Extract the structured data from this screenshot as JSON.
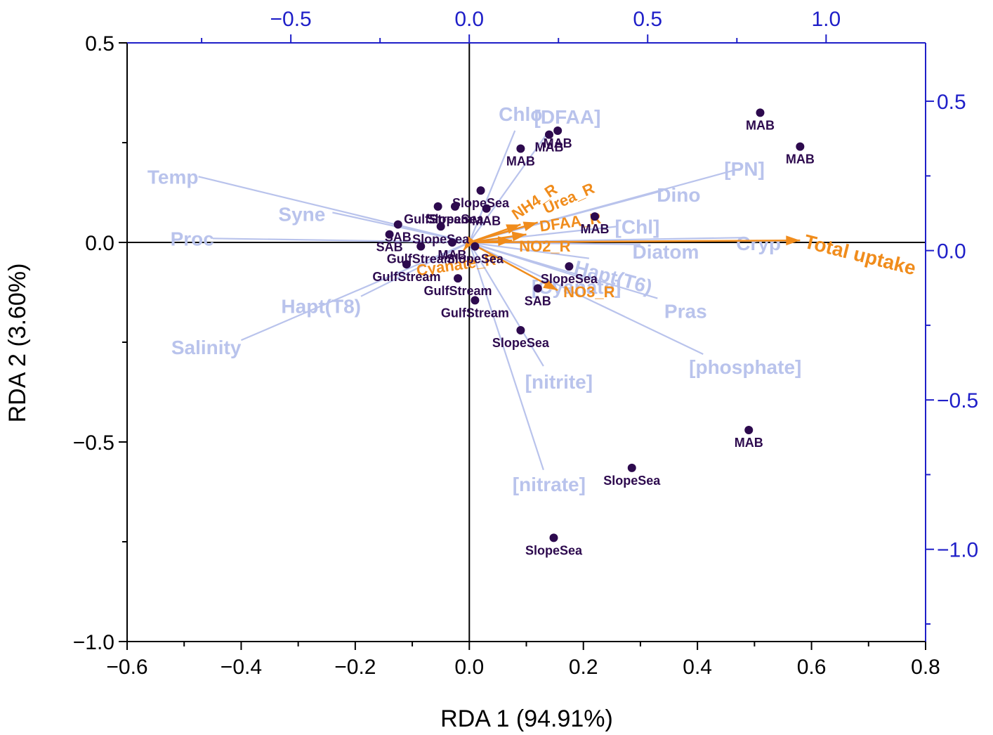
{
  "chart_data": {
    "type": "scatter",
    "subtype": "RDA biplot",
    "title": "",
    "xlabel": "RDA 1 (94.91%)",
    "ylabel": "RDA 2 (3.60%)",
    "xlim": [
      -0.6,
      0.8
    ],
    "ylim": [
      -1.0,
      0.5
    ],
    "x_ticks": [
      -0.6,
      -0.4,
      -0.2,
      0.0,
      0.2,
      0.4,
      0.6,
      0.8
    ],
    "x_tick_labels": [
      "−0.6",
      "−0.4",
      "−0.2",
      "0.0",
      "0.2",
      "0.4",
      "0.6",
      "0.8"
    ],
    "y_ticks": [
      0.5,
      0.0,
      -0.5,
      -1.0
    ],
    "y_tick_labels": [
      "0.5",
      "0.0",
      "−0.5",
      "−1.0"
    ],
    "top_axis": {
      "lim": [
        -0.9588,
        1.2788
      ],
      "ticks": [
        -0.5,
        0.0,
        0.5,
        1.0
      ],
      "tick_labels": [
        "−0.5",
        "0.0",
        "0.5",
        "1.0"
      ]
    },
    "right_axis": {
      "lim": [
        -1.3088,
        0.6954
      ],
      "ticks": [
        0.5,
        0.0,
        -0.5,
        -1.0
      ],
      "tick_labels": [
        "0.5",
        "0.0",
        "−0.5",
        "−1.0"
      ]
    },
    "colors": {
      "points": "#2d0a4e",
      "environment": "#b9c3ec",
      "response": "#f08c1c",
      "secondary_axis": "#1f1fc8",
      "axis": "#000000"
    },
    "environmental_vectors": [
      {
        "name": "Temp",
        "x": -0.475,
        "y": 0.165
      },
      {
        "name": "Syne",
        "x": -0.24,
        "y": 0.075
      },
      {
        "name": "Proc",
        "x": -0.45,
        "y": 0.01
      },
      {
        "name": "Salinity",
        "x": -0.4,
        "y": -0.245
      },
      {
        "name": "Hapt(T8)",
        "x": -0.19,
        "y": -0.135
      },
      {
        "name": "Chlo",
        "x": 0.08,
        "y": 0.28
      },
      {
        "name": "[DFAA]",
        "x": 0.14,
        "y": 0.28
      },
      {
        "name": "[PN]",
        "x": 0.475,
        "y": 0.185
      },
      {
        "name": "Dino",
        "x": 0.34,
        "y": 0.13
      },
      {
        "name": "[Chl]",
        "x": 0.26,
        "y": 0.04
      },
      {
        "name": "Cryp",
        "x": 0.48,
        "y": 0.012
      },
      {
        "name": "Diatom",
        "x": 0.3,
        "y": -0.005
      },
      {
        "name": "Hapt(T6)",
        "x": 0.21,
        "y": -0.04
      },
      {
        "name": "Pras",
        "x": 0.33,
        "y": -0.14
      },
      {
        "name": "[phosphate]",
        "x": 0.41,
        "y": -0.28
      },
      {
        "name": "[Cyanate]",
        "x": 0.2,
        "y": -0.09
      },
      {
        "name": "[nitrite]",
        "x": 0.13,
        "y": -0.31
      },
      {
        "name": "[nitrate]",
        "x": 0.13,
        "y": -0.57
      }
    ],
    "response_vectors": [
      {
        "name": "Total uptake",
        "x": 0.58,
        "y": 0.005
      },
      {
        "name": "Urea_R",
        "x": 0.12,
        "y": 0.05
      },
      {
        "name": "NH4_R",
        "x": 0.09,
        "y": 0.045
      },
      {
        "name": "DFAA_R",
        "x": 0.1,
        "y": 0.02
      },
      {
        "name": "NO2_R",
        "x": 0.075,
        "y": 0.005
      },
      {
        "name": "NO3_R",
        "x": 0.155,
        "y": -0.12
      },
      {
        "name": "Cyanate_R",
        "x": -0.01,
        "y": -0.02
      }
    ],
    "sites": [
      {
        "label": "MAB",
        "x": 0.51,
        "y": 0.325
      },
      {
        "label": "MAB",
        "x": 0.58,
        "y": 0.24
      },
      {
        "label": "MAB",
        "x": 0.155,
        "y": 0.28
      },
      {
        "label": "MAB",
        "x": 0.14,
        "y": 0.27
      },
      {
        "label": "MAB",
        "x": 0.09,
        "y": 0.235
      },
      {
        "label": "MAB",
        "x": 0.22,
        "y": 0.065
      },
      {
        "label": "MAB",
        "x": 0.03,
        "y": 0.085
      },
      {
        "label": "MAB",
        "x": -0.03,
        "y": 0.0
      },
      {
        "label": "MAB",
        "x": 0.49,
        "y": -0.47
      },
      {
        "label": "SlopeSea",
        "x": 0.02,
        "y": 0.13
      },
      {
        "label": "SlopeSea",
        "x": -0.025,
        "y": 0.09
      },
      {
        "label": "SlopeSea",
        "x": -0.05,
        "y": 0.04
      },
      {
        "label": "SlopeSea",
        "x": 0.01,
        "y": -0.01
      },
      {
        "label": "SlopeSea",
        "x": 0.175,
        "y": -0.06
      },
      {
        "label": "SlopeSea",
        "x": 0.09,
        "y": -0.22
      },
      {
        "label": "SlopeSea",
        "x": 0.285,
        "y": -0.565
      },
      {
        "label": "SlopeSea",
        "x": 0.148,
        "y": -0.74
      },
      {
        "label": "GulfStream",
        "x": -0.055,
        "y": 0.09
      },
      {
        "label": "GulfStream",
        "x": -0.085,
        "y": -0.01
      },
      {
        "label": "GulfStream",
        "x": -0.11,
        "y": -0.055
      },
      {
        "label": "GulfStream",
        "x": -0.02,
        "y": -0.09
      },
      {
        "label": "GulfStream",
        "x": 0.01,
        "y": -0.145
      },
      {
        "label": "SAB",
        "x": -0.125,
        "y": 0.045
      },
      {
        "label": "SAB",
        "x": -0.14,
        "y": 0.02
      },
      {
        "label": "SAB",
        "x": 0.12,
        "y": -0.115
      }
    ]
  }
}
